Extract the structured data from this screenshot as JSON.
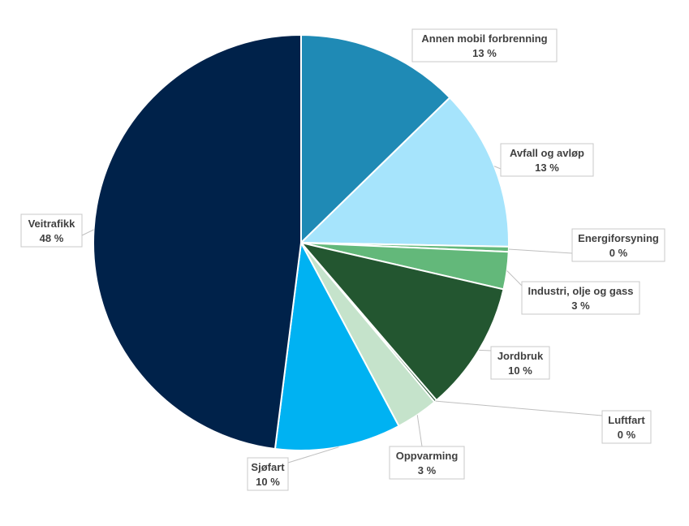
{
  "chart_data": {
    "type": "pie",
    "title": "",
    "start_angle_deg": 0,
    "direction": "clockwise",
    "slices": [
      {
        "name": "Annen mobil forbrenning",
        "value": 12.7,
        "display": "13 %",
        "color": "#1f8ab5"
      },
      {
        "name": "Avfall og avløp",
        "value": 12.6,
        "display": "13 %",
        "color": "#a6e4fc"
      },
      {
        "name": "Energiforsyning",
        "value": 0.4,
        "display": "0 %",
        "color": "#63b87a"
      },
      {
        "name": "Industri, olje og gass",
        "value": 2.9,
        "display": "3 %",
        "color": "#63b87a"
      },
      {
        "name": "Jordbruk",
        "value": 10.1,
        "display": "10 %",
        "color": "#235630"
      },
      {
        "name": "Luftfart",
        "value": 0.2,
        "display": "0 %",
        "color": "#235630"
      },
      {
        "name": "Oppvarming",
        "value": 3.3,
        "display": "3 %",
        "color": "#c5e3cb"
      },
      {
        "name": "Sjøfart",
        "value": 9.8,
        "display": "10 %",
        "color": "#00b2f2"
      },
      {
        "name": "Veitrafikk",
        "value": 48.0,
        "display": "48 %",
        "color": "#00224a"
      }
    ]
  }
}
